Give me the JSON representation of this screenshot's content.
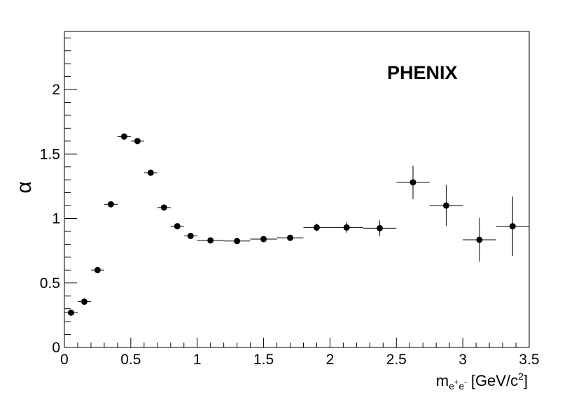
{
  "chart_data": {
    "type": "scatter",
    "annotation": "PHENIX",
    "ylabel": "α",
    "xlabel": {
      "base": "m",
      "sub_e1": "e",
      "sup_plus": "+",
      "sub_e2": "e",
      "sup_minus": "-",
      "unit": "[GeV/c",
      "unit_sup": "2",
      "unit_close": "]"
    },
    "xlim": [
      0,
      3.5
    ],
    "ylim": [
      0,
      2.45
    ],
    "xticks": [
      "0",
      "0.5",
      "1",
      "1.5",
      "2",
      "2.5",
      "3",
      "3.5"
    ],
    "yticks": [
      "0",
      "0.5",
      "1",
      "1.5",
      "2"
    ],
    "xtick_values": [
      0,
      0.5,
      1,
      1.5,
      2,
      2.5,
      3,
      3.5
    ],
    "ytick_values": [
      0,
      0.5,
      1,
      1.5,
      2
    ],
    "grid": false,
    "points": [
      {
        "x": 0.05,
        "y": 0.27,
        "xerr": 0.05,
        "yerr": 0.01
      },
      {
        "x": 0.15,
        "y": 0.355,
        "xerr": 0.05,
        "yerr": 0.01
      },
      {
        "x": 0.25,
        "y": 0.6,
        "xerr": 0.05,
        "yerr": 0.01
      },
      {
        "x": 0.35,
        "y": 1.11,
        "xerr": 0.05,
        "yerr": 0.01
      },
      {
        "x": 0.45,
        "y": 1.635,
        "xerr": 0.05,
        "yerr": 0.01
      },
      {
        "x": 0.55,
        "y": 1.6,
        "xerr": 0.05,
        "yerr": 0.01
      },
      {
        "x": 0.65,
        "y": 1.355,
        "xerr": 0.05,
        "yerr": 0.01
      },
      {
        "x": 0.75,
        "y": 1.085,
        "xerr": 0.05,
        "yerr": 0.01
      },
      {
        "x": 0.85,
        "y": 0.94,
        "xerr": 0.05,
        "yerr": 0.01
      },
      {
        "x": 0.95,
        "y": 0.865,
        "xerr": 0.05,
        "yerr": 0.01
      },
      {
        "x": 1.1,
        "y": 0.83,
        "xerr": 0.1,
        "yerr": 0.01
      },
      {
        "x": 1.3,
        "y": 0.825,
        "xerr": 0.1,
        "yerr": 0.01
      },
      {
        "x": 1.5,
        "y": 0.84,
        "xerr": 0.1,
        "yerr": 0.015
      },
      {
        "x": 1.7,
        "y": 0.85,
        "xerr": 0.1,
        "yerr": 0.015
      },
      {
        "x": 1.9,
        "y": 0.93,
        "xerr": 0.1,
        "yerr": 0.03
      },
      {
        "x": 2.125,
        "y": 0.93,
        "xerr": 0.125,
        "yerr": 0.04
      },
      {
        "x": 2.375,
        "y": 0.925,
        "xerr": 0.125,
        "yerr": 0.06
      },
      {
        "x": 2.625,
        "y": 1.28,
        "xerr": 0.125,
        "yerr": 0.13
      },
      {
        "x": 2.875,
        "y": 1.1,
        "xerr": 0.125,
        "yerr": 0.16
      },
      {
        "x": 3.125,
        "y": 0.835,
        "xerr": 0.125,
        "yerr": 0.17
      },
      {
        "x": 3.375,
        "y": 0.94,
        "xerr": 0.125,
        "yerr": 0.23
      }
    ]
  }
}
